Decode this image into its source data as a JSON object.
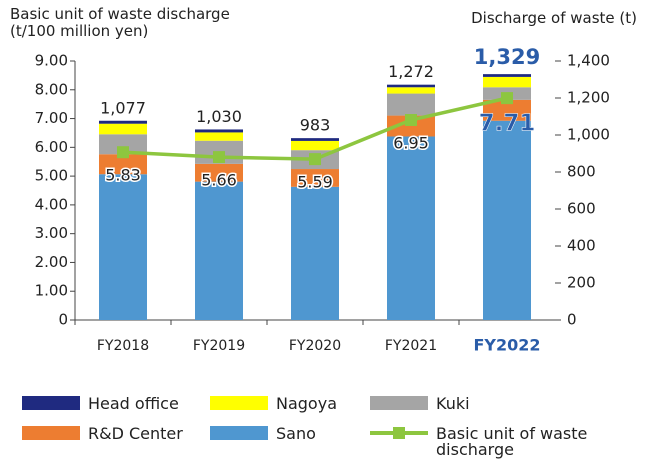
{
  "chart_data": {
    "type": "combo",
    "ylabel_lines": [
      "Basic unit of waste discharge",
      "(t/100 million yen)"
    ],
    "y2label": "Discharge of waste (t)",
    "categories": [
      "FY2018",
      "FY2019",
      "FY2020",
      "FY2021",
      "FY2022"
    ],
    "highlight_index": 4,
    "highlight_color": "#2a5ca8",
    "ylim": [
      0,
      9
    ],
    "yticks": [
      {
        "value": 0,
        "label": "0"
      },
      {
        "value": 1,
        "label": "1.00"
      },
      {
        "value": 2,
        "label": "2.00"
      },
      {
        "value": 3,
        "label": "3.00"
      },
      {
        "value": 4,
        "label": "4.00"
      },
      {
        "value": 5,
        "label": "5.00"
      },
      {
        "value": 6,
        "label": "6.00"
      },
      {
        "value": 7,
        "label": "7.00"
      },
      {
        "value": 8,
        "label": "8.00"
      },
      {
        "value": 9,
        "label": "9.00"
      }
    ],
    "y2lim": [
      0,
      1400
    ],
    "y2ticks": [
      0,
      200,
      400,
      600,
      800,
      {
        "value": 1000,
        "label": "1,000"
      },
      {
        "value": 1200,
        "label": "1,200"
      },
      {
        "value": 1400,
        "label": "1,400"
      }
    ],
    "series": [
      {
        "name": "Sano",
        "color": "#4f97d0",
        "type": "bar",
        "axis": "y2",
        "values": [
          788,
          748,
          720,
          992,
          1077
        ]
      },
      {
        "name": "R&D Center",
        "color": "#ed7d31",
        "type": "bar",
        "axis": "y2",
        "values": [
          108,
          96,
          96,
          113,
          113
        ]
      },
      {
        "name": "Kuki",
        "color": "#a5a5a5",
        "type": "bar",
        "axis": "y2",
        "values": [
          108,
          125,
          102,
          119,
          68
        ]
      },
      {
        "name": "Nagoya",
        "color": "#ffff00",
        "type": "bar",
        "axis": "y2",
        "values": [
          57,
          45,
          50,
          34,
          56
        ]
      },
      {
        "name": "Head office",
        "color": "#1f2a80",
        "type": "bar",
        "axis": "y2",
        "values": [
          16,
          16,
          15,
          14,
          15
        ]
      },
      {
        "name": "Basic unit of waste discharge",
        "color": "#8dc63f",
        "type": "line",
        "values": [
          5.83,
          5.66,
          5.59,
          6.95,
          7.71
        ]
      }
    ],
    "totals": [
      1077,
      1030,
      983,
      1272,
      1329
    ],
    "total_labels": [
      "1,077",
      "1,030",
      "983",
      "1,272",
      "1,329"
    ]
  }
}
